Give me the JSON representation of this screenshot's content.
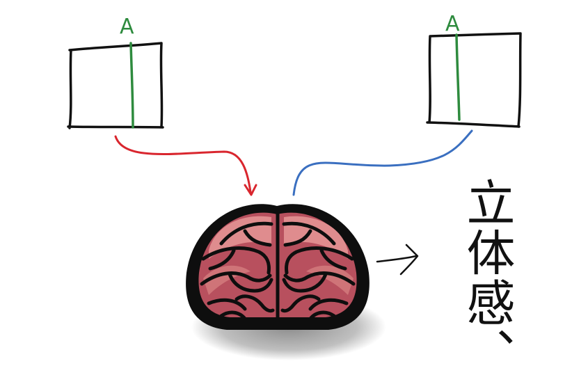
{
  "left_view": {
    "label": "A",
    "line_color": "#2e8b3e"
  },
  "right_view": {
    "label": "A",
    "line_color": "#2e8b3e"
  },
  "arrows": {
    "left_color": "#d9262e",
    "right_color": "#3a6fc0"
  },
  "brain": {
    "icon": "brain-icon",
    "outline_color": "#0e0e0e",
    "fill_dark": "#b8505e",
    "fill_light": "#df8c8e"
  },
  "result": {
    "text": "立体感、"
  }
}
